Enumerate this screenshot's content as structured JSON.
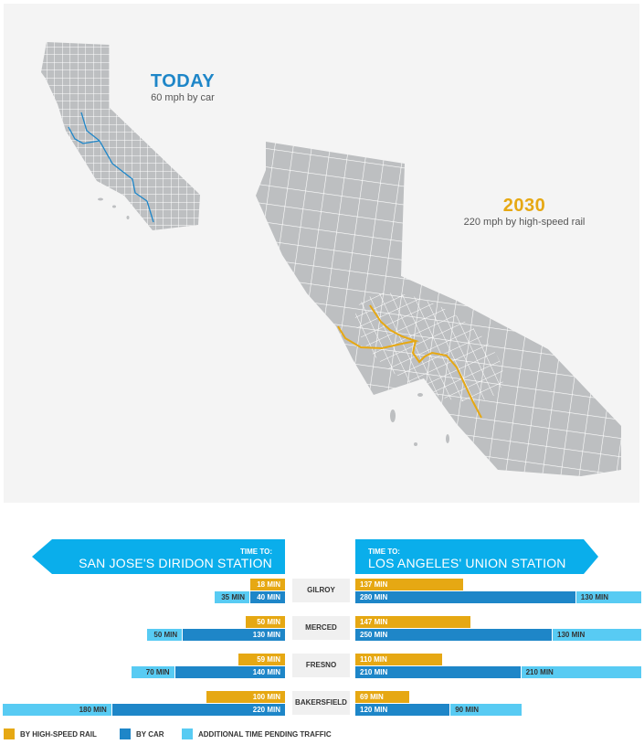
{
  "maps": {
    "today": {
      "title": "TODAY",
      "subtitle": "60 mph by car",
      "color": "#1e86c8"
    },
    "future": {
      "title": "2030",
      "subtitle": "220 mph by high-speed rail",
      "color": "#e6a813"
    }
  },
  "chart_data": {
    "type": "bar",
    "orientation": "horizontal diverging",
    "left_header": {
      "small": "TIME TO:",
      "large": "SAN JOSE'S DIRIDON STATION"
    },
    "right_header": {
      "small": "TIME TO:",
      "large": "LOS ANGELES' UNION STATION"
    },
    "unit": "MIN",
    "categories": [
      "GILROY",
      "MERCED",
      "FRESNO",
      "BAKERSFIELD"
    ],
    "series": [
      {
        "name": "BY HIGH-SPEED RAIL",
        "color": "#e6a813",
        "to_san_jose": [
          18,
          50,
          59,
          100
        ],
        "to_los_angeles": [
          137,
          147,
          110,
          69
        ]
      },
      {
        "name": "BY CAR",
        "color": "#1e86c8",
        "to_san_jose": [
          40,
          130,
          140,
          220
        ],
        "to_los_angeles": [
          280,
          250,
          210,
          120
        ]
      },
      {
        "name": "ADDITIONAL TIME PENDING TRAFFIC",
        "color": "#58cbf3",
        "to_san_jose": [
          35,
          50,
          70,
          180
        ],
        "to_los_angeles": [
          130,
          130,
          210,
          90
        ]
      }
    ]
  }
}
